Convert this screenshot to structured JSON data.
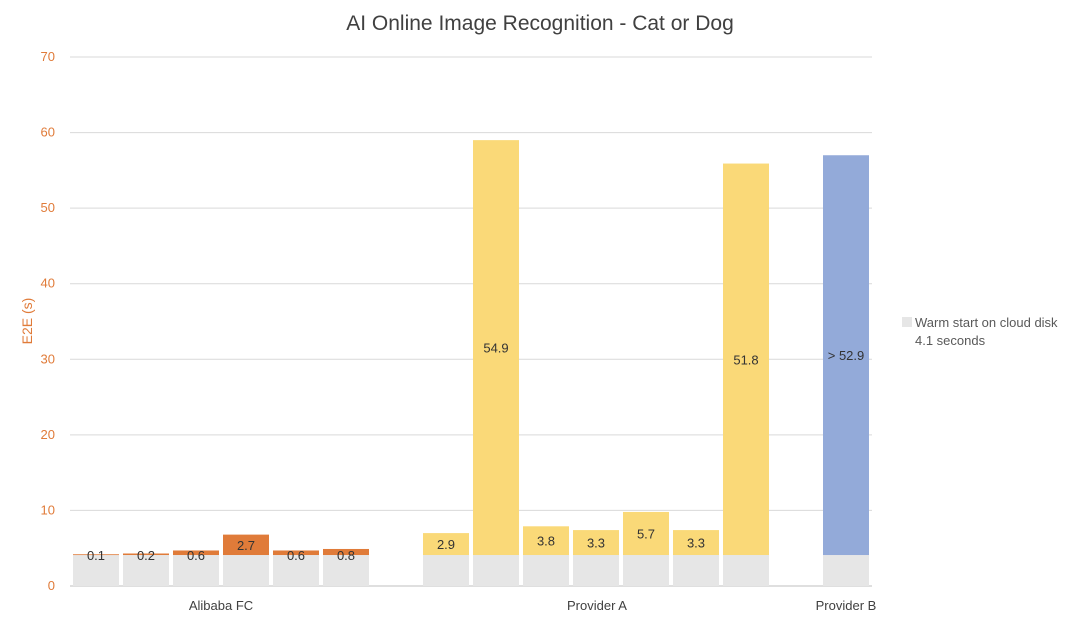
{
  "chart_data": {
    "type": "bar",
    "title": "AI Online Image Recognition - Cat or Dog",
    "ylabel": "E2E (s)",
    "xlabel": "",
    "ylim": [
      0,
      70
    ],
    "yticks": [
      0,
      10,
      20,
      30,
      40,
      50,
      60,
      70
    ],
    "grid": true,
    "stacked": true,
    "groups": [
      "Alibaba FC",
      "Provider A",
      "Provider B"
    ],
    "bars": [
      {
        "group": "Alibaba FC",
        "base": 4.1,
        "top": 0.1,
        "label": "0.1"
      },
      {
        "group": "Alibaba FC",
        "base": 4.1,
        "top": 0.2,
        "label": "0.2"
      },
      {
        "group": "Alibaba FC",
        "base": 4.1,
        "top": 0.6,
        "label": "0.6"
      },
      {
        "group": "Alibaba FC",
        "base": 4.1,
        "top": 2.7,
        "label": "2.7"
      },
      {
        "group": "Alibaba FC",
        "base": 4.1,
        "top": 0.6,
        "label": "0.6"
      },
      {
        "group": "Alibaba FC",
        "base": 4.1,
        "top": 0.8,
        "label": "0.8"
      },
      {
        "group": "Provider A",
        "base": 4.1,
        "top": 2.9,
        "label": "2.9"
      },
      {
        "group": "Provider A",
        "base": 4.1,
        "top": 54.9,
        "label": "54.9"
      },
      {
        "group": "Provider A",
        "base": 4.1,
        "top": 3.8,
        "label": "3.8"
      },
      {
        "group": "Provider A",
        "base": 4.1,
        "top": 3.3,
        "label": "3.3"
      },
      {
        "group": "Provider A",
        "base": 4.1,
        "top": 5.7,
        "label": "5.7"
      },
      {
        "group": "Provider A",
        "base": 4.1,
        "top": 3.3,
        "label": "3.3"
      },
      {
        "group": "Provider A",
        "base": 4.1,
        "top": 51.8,
        "label": "51.8"
      },
      {
        "group": "Provider B",
        "base": 4.1,
        "top": 52.9,
        "label": "> 52.9"
      }
    ],
    "colors": {
      "base": "#e6e6e6",
      "Alibaba FC": "#e07b39",
      "Provider A": "#fad978",
      "Provider B": "#93aad9"
    },
    "legend": {
      "position": "right",
      "entries": [
        {
          "name": "Warm start on cloud disk",
          "detail": "4.1 seconds",
          "color": "#e6e6e6"
        }
      ]
    }
  }
}
